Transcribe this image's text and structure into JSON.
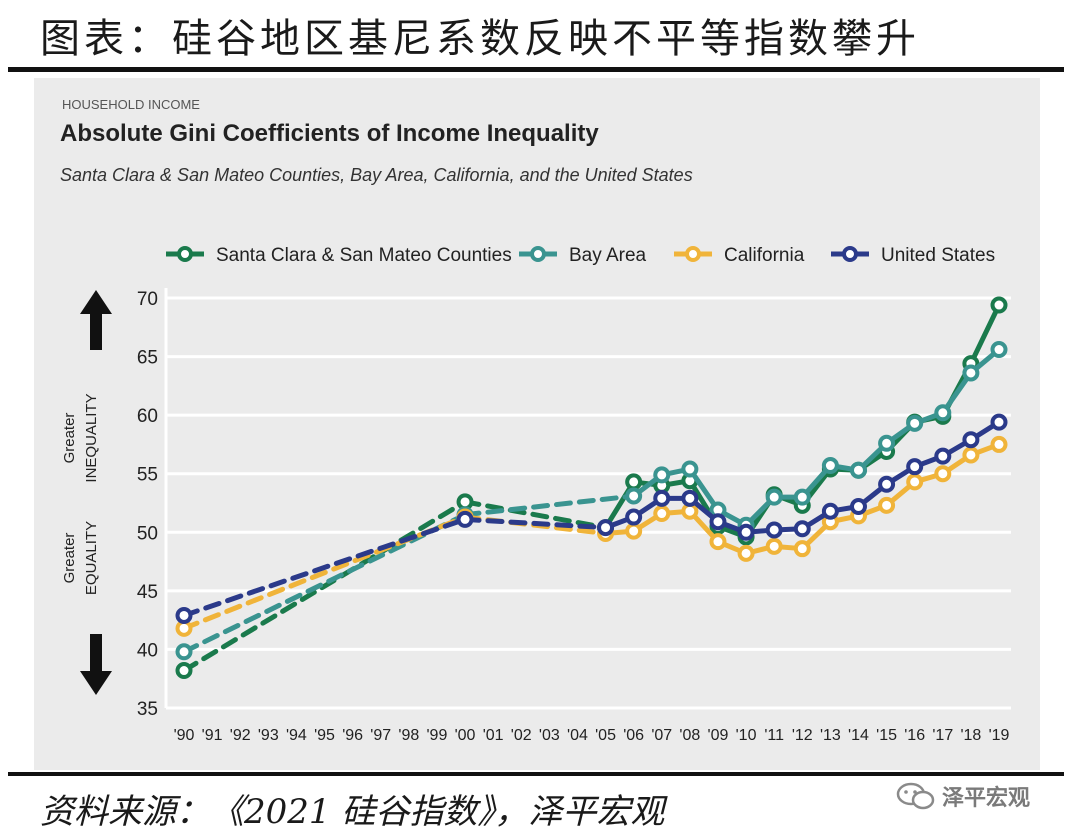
{
  "page_title": "图表：硅谷地区基尼系数反映不平等指数攀升",
  "source": "资料来源：《2021 硅谷指数》，泽平宏观",
  "watermark": "泽平宏观",
  "chart_data": {
    "type": "line",
    "kicker": "HOUSEHOLD INCOME",
    "title": "Absolute Gini Coefficients of Income Inequality",
    "subtitle": "Santa Clara & San Mateo Counties, Bay Area, California, and the United States",
    "ylim": [
      35,
      70
    ],
    "yticks": [
      35,
      40,
      45,
      50,
      55,
      60,
      65,
      70
    ],
    "categories": [
      "'90",
      "'91",
      "'92",
      "'93",
      "'94",
      "'95",
      "'96",
      "'97",
      "'98",
      "'99",
      "'00",
      "'01",
      "'02",
      "'03",
      "'04",
      "'05",
      "'06",
      "'07",
      "'08",
      "'09",
      "'10",
      "'11",
      "'12",
      "'13",
      "'14",
      "'15",
      "'16",
      "'17",
      "'18",
      "'19"
    ],
    "axis_labels": {
      "upper": [
        "Greater",
        "INEQUALITY"
      ],
      "lower": [
        "Greater",
        "EQUALITY"
      ]
    },
    "note": "Dashed segments connect 1990 to 2000 and 2000 to 2005 (interpolated years)",
    "series": [
      {
        "name": "Santa Clara & San Mateo Counties",
        "color": "#1a7a4c",
        "points": [
          {
            "x": "'90",
            "y": 38.2
          },
          {
            "x": "'00",
            "y": 52.6
          },
          {
            "x": "'05",
            "y": 50.4
          },
          {
            "x": "'06",
            "y": 54.3
          },
          {
            "x": "'07",
            "y": 54.0
          },
          {
            "x": "'08",
            "y": 54.4
          },
          {
            "x": "'09",
            "y": 50.5
          },
          {
            "x": "'10",
            "y": 49.6
          },
          {
            "x": "'11",
            "y": 53.2
          },
          {
            "x": "'12",
            "y": 52.3
          },
          {
            "x": "'13",
            "y": 55.4
          },
          {
            "x": "'14",
            "y": 55.3
          },
          {
            "x": "'15",
            "y": 56.9
          },
          {
            "x": "'16",
            "y": 59.4
          },
          {
            "x": "'17",
            "y": 59.9
          },
          {
            "x": "'18",
            "y": 64.4
          },
          {
            "x": "'19",
            "y": 69.4
          }
        ]
      },
      {
        "name": "Bay Area",
        "color": "#3a9490",
        "points": [
          {
            "x": "'90",
            "y": 39.8
          },
          {
            "x": "'00",
            "y": 51.5
          },
          {
            "x": "'06",
            "y": 53.1
          },
          {
            "x": "'07",
            "y": 54.9
          },
          {
            "x": "'08",
            "y": 55.4
          },
          {
            "x": "'09",
            "y": 51.9
          },
          {
            "x": "'10",
            "y": 50.6
          },
          {
            "x": "'11",
            "y": 53.0
          },
          {
            "x": "'12",
            "y": 53.0
          },
          {
            "x": "'13",
            "y": 55.7
          },
          {
            "x": "'14",
            "y": 55.3
          },
          {
            "x": "'15",
            "y": 57.6
          },
          {
            "x": "'16",
            "y": 59.3
          },
          {
            "x": "'17",
            "y": 60.2
          },
          {
            "x": "'18",
            "y": 63.6
          },
          {
            "x": "'19",
            "y": 65.6
          }
        ]
      },
      {
        "name": "California",
        "color": "#f0b43a",
        "points": [
          {
            "x": "'90",
            "y": 41.8
          },
          {
            "x": "'00",
            "y": 51.3
          },
          {
            "x": "'05",
            "y": 49.9
          },
          {
            "x": "'06",
            "y": 50.1
          },
          {
            "x": "'07",
            "y": 51.6
          },
          {
            "x": "'08",
            "y": 51.8
          },
          {
            "x": "'09",
            "y": 49.2
          },
          {
            "x": "'10",
            "y": 48.2
          },
          {
            "x": "'11",
            "y": 48.8
          },
          {
            "x": "'12",
            "y": 48.6
          },
          {
            "x": "'13",
            "y": 50.9
          },
          {
            "x": "'14",
            "y": 51.4
          },
          {
            "x": "'15",
            "y": 52.3
          },
          {
            "x": "'16",
            "y": 54.3
          },
          {
            "x": "'17",
            "y": 55.0
          },
          {
            "x": "'18",
            "y": 56.6
          },
          {
            "x": "'19",
            "y": 57.5
          }
        ]
      },
      {
        "name": "United States",
        "color": "#2b3a8a",
        "points": [
          {
            "x": "'90",
            "y": 42.9
          },
          {
            "x": "'00",
            "y": 51.1
          },
          {
            "x": "'05",
            "y": 50.4
          },
          {
            "x": "'06",
            "y": 51.3
          },
          {
            "x": "'07",
            "y": 52.9
          },
          {
            "x": "'08",
            "y": 52.9
          },
          {
            "x": "'09",
            "y": 50.9
          },
          {
            "x": "'10",
            "y": 50.0
          },
          {
            "x": "'11",
            "y": 50.2
          },
          {
            "x": "'12",
            "y": 50.3
          },
          {
            "x": "'13",
            "y": 51.8
          },
          {
            "x": "'14",
            "y": 52.2
          },
          {
            "x": "'15",
            "y": 54.1
          },
          {
            "x": "'16",
            "y": 55.6
          },
          {
            "x": "'17",
            "y": 56.5
          },
          {
            "x": "'18",
            "y": 57.9
          },
          {
            "x": "'19",
            "y": 59.4
          }
        ]
      }
    ]
  }
}
